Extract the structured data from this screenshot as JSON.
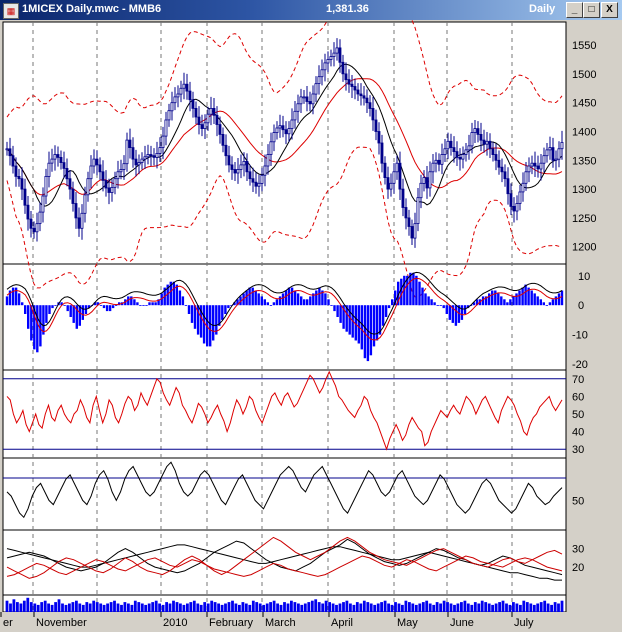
{
  "window": {
    "title": "1MICEX Daily.mwc - MMB6",
    "last_price": "1,381.36",
    "period": "Daily",
    "buttons": {
      "minimize": "_",
      "maximize": "□",
      "close": "X"
    }
  },
  "chart_data": [
    {
      "type": "candlestick",
      "panel": "price",
      "y_ticks": [
        1550,
        1500,
        1450,
        1400,
        1350,
        1300,
        1250,
        1200
      ],
      "ylim": [
        1170,
        1590
      ],
      "close": [
        1370,
        1358,
        1340,
        1322,
        1318,
        1300,
        1272,
        1248,
        1232,
        1226,
        1240,
        1260,
        1288,
        1322,
        1345,
        1352,
        1360,
        1355,
        1346,
        1336,
        1318,
        1300,
        1275,
        1250,
        1232,
        1258,
        1290,
        1318,
        1340,
        1352,
        1342,
        1330,
        1315,
        1302,
        1294,
        1303,
        1318,
        1330,
        1334,
        1344,
        1385,
        1372,
        1352,
        1342,
        1346,
        1352,
        1356,
        1360,
        1358,
        1355,
        1362,
        1372,
        1392,
        1420,
        1436,
        1450,
        1460,
        1465,
        1475,
        1482,
        1470,
        1455,
        1440,
        1425,
        1412,
        1405,
        1415,
        1430,
        1440,
        1428,
        1412,
        1395,
        1376,
        1358,
        1342,
        1334,
        1328,
        1334,
        1342,
        1348,
        1330,
        1318,
        1312,
        1305,
        1310,
        1324,
        1340,
        1360,
        1382,
        1398,
        1406,
        1410,
        1403,
        1396,
        1405,
        1420,
        1435,
        1448,
        1460,
        1460,
        1452,
        1448,
        1465,
        1483,
        1495,
        1507,
        1519,
        1525,
        1530,
        1536,
        1545,
        1520,
        1500,
        1490,
        1482,
        1478,
        1472,
        1465,
        1462,
        1458,
        1450,
        1440,
        1420,
        1400,
        1380,
        1345,
        1320,
        1300,
        1310,
        1330,
        1345,
        1300,
        1268,
        1250,
        1235,
        1215,
        1240,
        1285,
        1310,
        1320,
        1302,
        1330,
        1345,
        1350,
        1343,
        1360,
        1370,
        1383,
        1372,
        1365,
        1355,
        1352,
        1360,
        1368,
        1375,
        1398,
        1405,
        1395,
        1385,
        1378,
        1383,
        1370,
        1360,
        1350,
        1338,
        1330,
        1318,
        1292,
        1270,
        1262,
        1275,
        1295,
        1310,
        1330,
        1340,
        1345,
        1340,
        1335,
        1345,
        1358,
        1368,
        1372,
        1350,
        1352,
        1370,
        1381
      ]
    },
    {
      "type": "bar+line",
      "panel": "macd",
      "y_ticks": [
        10,
        0,
        -10,
        -20
      ],
      "ylim": [
        -22,
        14
      ],
      "histogram": [
        3,
        5,
        6,
        6,
        4,
        1,
        -3,
        -8,
        -12,
        -15,
        -16,
        -14,
        -10,
        -6,
        -3,
        -1,
        0,
        1,
        1,
        0,
        -2,
        -4,
        -6,
        -8,
        -7,
        -5,
        -3,
        -1,
        0,
        1,
        1,
        0,
        -1,
        -2,
        -2,
        -1,
        0,
        1,
        1,
        2,
        3,
        3,
        2,
        1,
        0,
        0,
        0,
        1,
        1,
        1,
        2,
        4,
        6,
        7,
        8,
        8,
        7,
        5,
        3,
        0,
        -3,
        -6,
        -8,
        -10,
        -11,
        -13,
        -14,
        -14,
        -12,
        -10,
        -7,
        -5,
        -3,
        -1,
        0,
        1,
        2,
        3,
        4,
        5,
        6,
        6,
        5,
        4,
        3,
        2,
        1,
        0,
        1,
        2,
        3,
        4,
        5,
        6,
        6,
        5,
        4,
        3,
        2,
        2,
        3,
        4,
        5,
        6,
        5,
        4,
        2,
        0,
        -2,
        -4,
        -6,
        -8,
        -9,
        -10,
        -11,
        -12,
        -13,
        -15,
        -18,
        -19,
        -17,
        -14,
        -12,
        -10,
        -7,
        -4,
        -1,
        2,
        5,
        8,
        9,
        10,
        10,
        11,
        11,
        10,
        8,
        6,
        4,
        3,
        2,
        1,
        0,
        0,
        -1,
        -3,
        -5,
        -6,
        -7,
        -6,
        -5,
        -3,
        -1,
        0,
        1,
        2,
        2,
        3,
        3,
        4,
        5,
        5,
        4,
        3,
        2,
        1,
        2,
        3,
        4,
        5,
        6,
        7,
        6,
        5,
        4,
        3,
        2,
        1,
        0,
        1,
        2,
        3,
        4,
        5
      ]
    },
    {
      "type": "line",
      "panel": "rsi",
      "y_ticks": [
        70,
        60,
        50,
        40,
        30
      ],
      "ylim": [
        25,
        75
      ],
      "values": [
        60,
        58,
        50,
        45,
        48,
        52,
        44,
        40,
        45,
        50,
        44,
        42,
        50,
        55,
        48,
        46,
        52,
        55,
        50,
        47,
        45,
        50,
        52,
        58,
        54,
        48,
        45,
        55,
        60,
        52,
        45,
        50,
        58,
        55,
        48,
        45,
        50,
        56,
        60,
        58,
        52,
        55,
        62,
        58,
        55,
        60,
        65,
        70,
        68,
        62,
        58,
        55,
        60,
        65,
        62,
        55,
        52,
        48,
        45,
        50,
        56,
        54,
        50,
        45,
        48,
        52,
        55,
        50,
        46,
        40,
        45,
        52,
        58,
        55,
        50,
        54,
        60,
        58,
        52,
        48,
        45,
        50,
        55,
        60,
        62,
        58,
        55,
        60,
        62,
        58,
        54,
        56,
        60,
        64,
        68,
        72,
        70,
        66,
        62,
        65,
        70,
        74,
        70,
        66,
        60,
        58,
        55,
        52,
        50,
        48,
        52,
        55,
        60,
        58,
        52,
        48,
        45,
        40,
        35,
        30,
        36,
        40,
        44,
        40,
        35,
        38,
        44,
        48,
        45,
        42,
        40,
        32,
        34,
        40,
        44,
        48,
        52,
        50,
        48,
        52,
        55,
        52,
        50,
        55,
        60,
        58,
        55,
        50,
        54,
        58,
        60,
        56,
        52,
        48,
        45,
        52,
        56,
        60,
        58,
        55,
        50,
        46,
        40,
        38,
        44,
        48,
        50,
        54,
        56,
        58,
        60,
        55,
        52,
        55,
        58
      ]
    },
    {
      "type": "line",
      "panel": "stochastic",
      "y_ticks": [
        50
      ],
      "values": [
        60,
        55,
        45,
        35,
        30,
        40,
        55,
        65,
        70,
        60,
        50,
        45,
        55,
        65,
        75,
        80,
        70,
        60,
        50,
        45,
        55,
        70,
        80,
        85,
        75,
        60,
        50,
        60,
        75,
        85,
        90,
        80,
        70,
        60,
        55,
        60,
        70,
        80,
        90,
        95,
        85,
        70,
        60,
        55,
        60,
        70,
        80,
        85,
        80,
        70,
        60,
        50,
        45,
        55,
        65,
        75,
        80,
        70,
        60,
        50,
        45,
        40,
        50,
        60,
        70,
        80,
        85,
        90,
        85,
        75,
        65,
        60,
        70,
        80,
        85,
        90,
        80,
        70,
        60,
        50,
        40,
        35,
        45,
        55,
        65,
        75,
        85,
        80,
        70,
        60,
        55,
        60,
        70,
        80,
        85,
        75,
        65,
        55,
        50,
        45,
        50,
        60,
        70,
        80,
        75,
        65,
        55,
        45,
        40,
        35,
        40,
        50,
        60,
        70,
        75,
        70,
        60,
        50,
        45,
        40,
        35,
        40,
        50,
        60,
        70,
        65,
        55,
        50,
        45,
        48,
        55,
        60,
        65
      ]
    },
    {
      "type": "line",
      "panel": "dmi",
      "y_ticks": [
        30,
        20
      ],
      "ylim": [
        5,
        40
      ],
      "series": [
        {
          "color": "#000000",
          "values": [
            30,
            29,
            28,
            27,
            26,
            25,
            24,
            23,
            22,
            21,
            20,
            20,
            21,
            22,
            23,
            24,
            25,
            26,
            27,
            28,
            29,
            30,
            31,
            32,
            32,
            31,
            30,
            29,
            28,
            27,
            26,
            25,
            24,
            23,
            22,
            22,
            23,
            24,
            25,
            26,
            27,
            28,
            29,
            30,
            31,
            31,
            30,
            29,
            28,
            27,
            26,
            25,
            24,
            24,
            25,
            26,
            27,
            28,
            27,
            26,
            25,
            24,
            23,
            22,
            21,
            20,
            19,
            18,
            17,
            17,
            16,
            15,
            14,
            14,
            13,
            13
          ]
        },
        {
          "color": "#000000",
          "values": [
            25,
            26,
            27,
            28,
            27,
            26,
            24,
            22,
            20,
            19,
            18,
            19,
            20,
            22,
            25,
            28,
            30,
            28,
            25,
            22,
            20,
            19,
            18,
            17,
            18,
            20,
            22,
            25,
            28,
            30,
            32,
            34,
            33,
            30,
            27,
            24,
            22,
            20,
            19,
            18,
            20,
            22,
            25,
            28,
            30,
            32,
            35,
            33,
            30,
            27,
            25,
            23,
            22,
            21,
            22,
            24,
            26,
            28,
            30,
            29,
            27,
            25,
            24,
            22,
            21,
            22,
            24,
            26,
            25,
            23,
            21,
            20,
            19,
            18,
            17,
            16
          ]
        },
        {
          "color": "#cc0000",
          "values": [
            20,
            18,
            16,
            14,
            15,
            17,
            20,
            23,
            25,
            24,
            22,
            20,
            18,
            17,
            19,
            22,
            25,
            23,
            20,
            18,
            17,
            16,
            18,
            21,
            24,
            26,
            24,
            21,
            18,
            16,
            18,
            21,
            24,
            27,
            30,
            33,
            36,
            34,
            31,
            28,
            26,
            24,
            26,
            28,
            31,
            34,
            36,
            34,
            31,
            28,
            26,
            24,
            23,
            22,
            21,
            23,
            25,
            27,
            29,
            30,
            28,
            26,
            24,
            22,
            21,
            20,
            22,
            24,
            25,
            23,
            22,
            24,
            26,
            28,
            29,
            27
          ]
        },
        {
          "color": "#cc0000",
          "values": [
            15,
            16,
            18,
            20,
            22,
            21,
            19,
            17,
            16,
            18,
            20,
            22,
            24,
            23,
            21,
            19,
            18,
            20,
            22,
            24,
            25,
            23,
            21,
            20,
            22,
            24,
            23,
            21,
            19,
            18,
            17,
            16,
            15,
            16,
            18,
            20,
            22,
            21,
            19,
            18,
            17,
            16,
            15,
            16,
            18,
            20,
            22,
            24,
            26,
            25,
            23,
            21,
            20,
            22,
            24,
            23,
            21,
            19,
            18,
            20,
            22,
            24,
            26,
            25,
            23,
            22,
            21,
            20,
            22,
            24,
            25,
            24,
            22,
            20,
            19,
            18
          ]
        }
      ]
    },
    {
      "type": "bar",
      "panel": "volume",
      "description_free": true,
      "values": [
        8,
        6,
        9,
        7,
        6,
        8,
        10,
        7,
        6,
        5,
        7,
        8,
        6,
        5,
        7,
        9,
        6,
        5,
        6,
        7,
        8,
        6,
        5,
        7,
        6,
        8,
        7,
        6,
        5,
        6,
        7,
        8,
        6,
        5,
        7,
        6,
        5,
        8,
        7,
        6,
        5,
        6,
        7,
        8,
        6,
        5,
        7,
        6,
        8,
        7,
        6,
        5,
        6,
        7,
        8,
        6,
        5,
        7,
        6,
        8,
        7,
        6,
        5,
        6,
        7,
        8,
        6,
        5,
        7,
        6,
        5,
        8,
        7,
        6,
        5,
        6,
        7,
        8,
        6,
        5,
        7,
        6,
        8,
        7,
        6,
        5,
        6,
        7,
        8,
        9,
        7,
        6,
        8,
        7,
        6,
        5,
        6,
        7,
        8,
        6,
        5,
        7,
        6,
        8,
        7,
        6,
        5,
        6,
        7,
        8,
        6,
        5,
        7,
        6,
        5,
        8,
        7,
        6,
        5,
        6,
        7,
        8,
        6,
        5,
        7,
        6,
        8,
        7,
        6,
        5,
        6,
        7,
        8,
        6,
        5,
        7,
        6,
        8,
        7,
        6,
        5,
        6,
        7,
        8,
        6,
        5,
        7,
        6,
        5,
        8,
        7,
        6,
        5,
        6,
        7,
        8,
        6,
        5,
        7,
        6,
        8
      ]
    }
  ],
  "x_axis": {
    "labels": [
      "er",
      "November",
      "2010",
      "February",
      "March",
      "April",
      "May",
      "June",
      "July"
    ]
  }
}
